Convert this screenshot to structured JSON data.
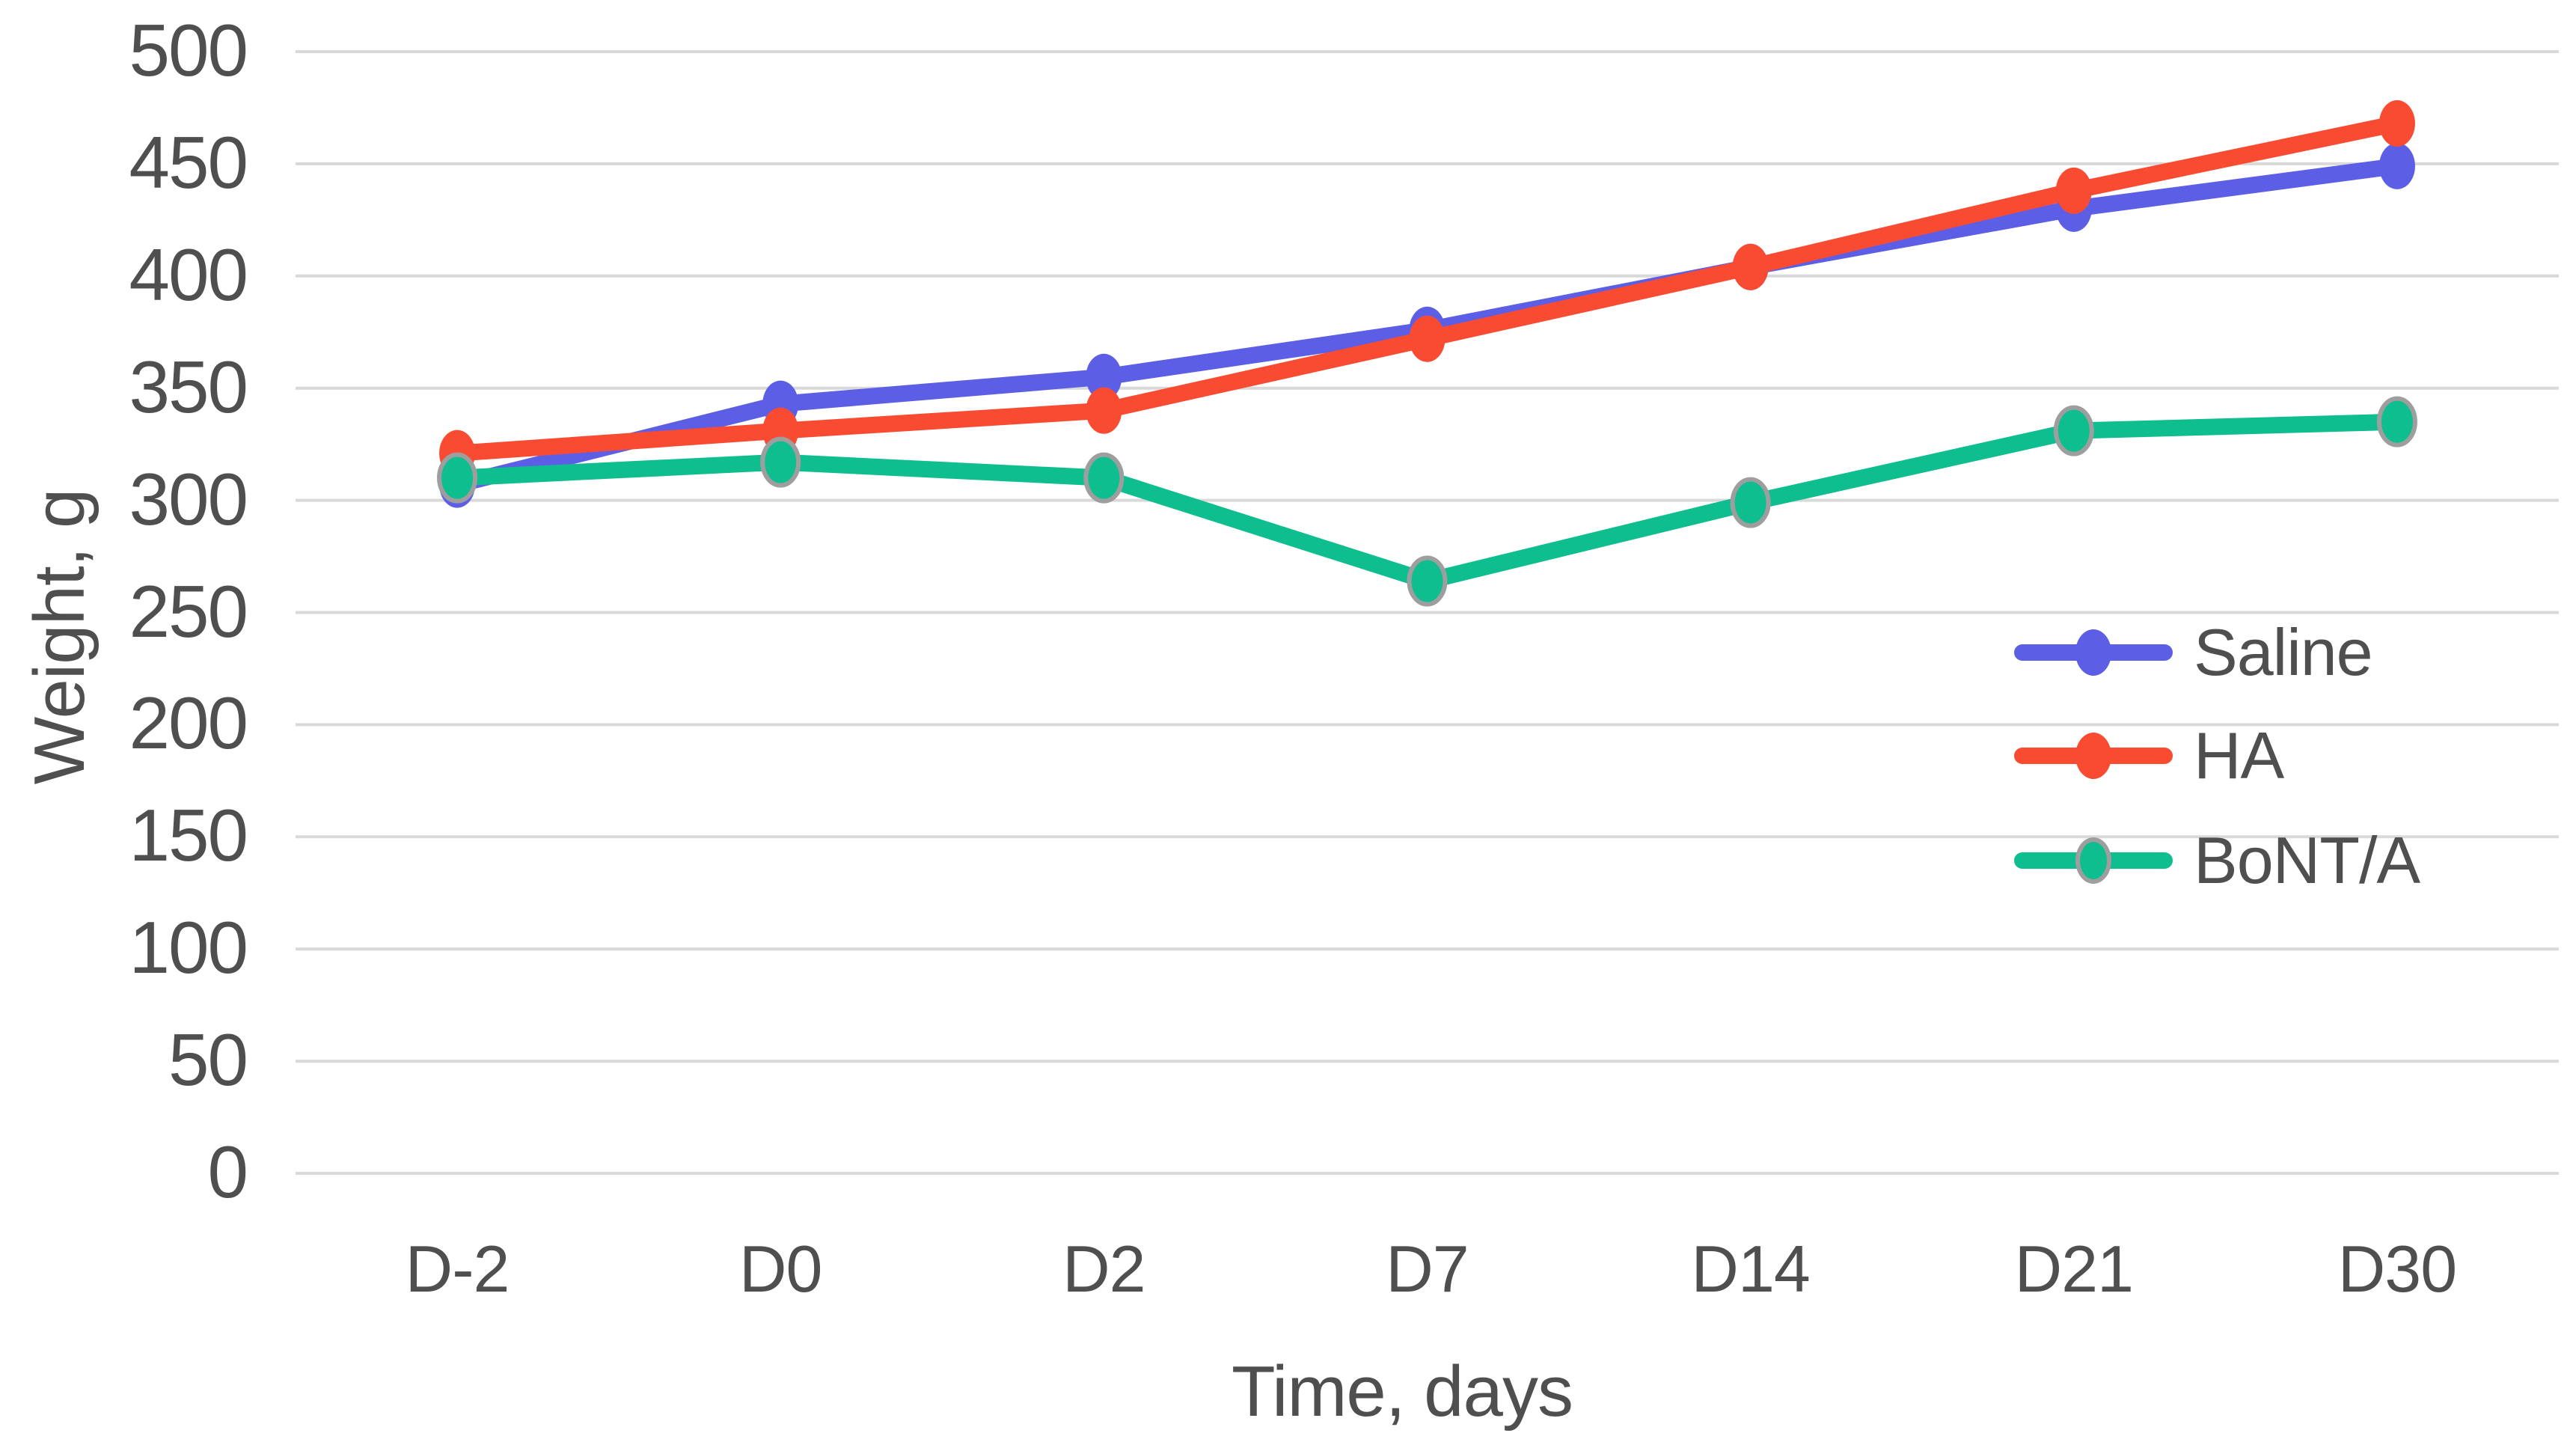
{
  "chart_data": {
    "type": "line",
    "title": "",
    "xlabel": "Time, days",
    "ylabel": "Weight, g",
    "categories": [
      "D-2",
      "D0",
      "D2",
      "D7",
      "D14",
      "D21",
      "D30"
    ],
    "series": [
      {
        "name": "Saline",
        "color": "#5C5FE6",
        "marker_outline": null,
        "values": [
          307,
          343,
          355,
          376,
          404,
          430,
          449
        ]
      },
      {
        "name": "HA",
        "color": "#F94B32",
        "marker_outline": null,
        "values": [
          321,
          331,
          340,
          372,
          404,
          438,
          468
        ]
      },
      {
        "name": "BoNT/A",
        "color": "#0FBE8E",
        "marker_outline": "#9E9E9E",
        "values": [
          310,
          317,
          310,
          264,
          299,
          331,
          335
        ]
      }
    ],
    "ylim": [
      0,
      500
    ],
    "y_ticks": [
      500,
      450,
      400,
      350,
      300,
      250,
      200,
      150,
      100,
      50,
      0
    ],
    "grid": "horizontal",
    "gridline_color": "#D9D9D9",
    "text_color": "#4F4F4F",
    "background": "#FFFFFF",
    "legend_position": "middle-right"
  }
}
